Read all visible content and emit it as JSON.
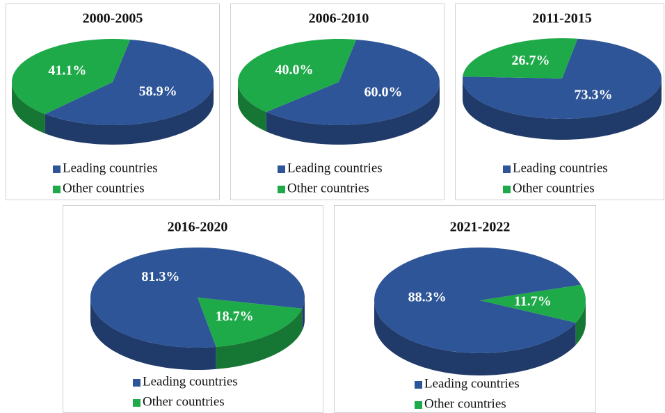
{
  "chart_data": [
    {
      "type": "pie",
      "title": "2000-2005",
      "categories": [
        "Leading countries",
        "Other countries"
      ],
      "values": [
        58.9,
        41.1
      ],
      "value_labels": [
        "58.9%",
        "41.1%"
      ],
      "colors": [
        "#2e5597",
        "#1faa4a"
      ]
    },
    {
      "type": "pie",
      "title": "2006-2010",
      "categories": [
        "Leading countries",
        "Other countries"
      ],
      "values": [
        60.0,
        40.0
      ],
      "value_labels": [
        "60.0%",
        "40.0%"
      ],
      "colors": [
        "#2e5597",
        "#1faa4a"
      ]
    },
    {
      "type": "pie",
      "title": "2011-2015",
      "categories": [
        "Leading countries",
        "Other countries"
      ],
      "values": [
        73.3,
        26.7
      ],
      "value_labels": [
        "73.3%",
        "26.7%"
      ],
      "colors": [
        "#2e5597",
        "#1faa4a"
      ]
    },
    {
      "type": "pie",
      "title": "2016-2020",
      "categories": [
        "Leading countries",
        "Other countries"
      ],
      "values": [
        81.3,
        18.7
      ],
      "value_labels": [
        "81.3%",
        "18.7%"
      ],
      "colors": [
        "#2e5597",
        "#1faa4a"
      ]
    },
    {
      "type": "pie",
      "title": "2021-2022",
      "categories": [
        "Leading countries",
        "Other countries"
      ],
      "values": [
        88.3,
        11.7
      ],
      "value_labels": [
        "88.3%",
        "11.7%"
      ],
      "colors": [
        "#2e5597",
        "#1faa4a"
      ]
    }
  ]
}
